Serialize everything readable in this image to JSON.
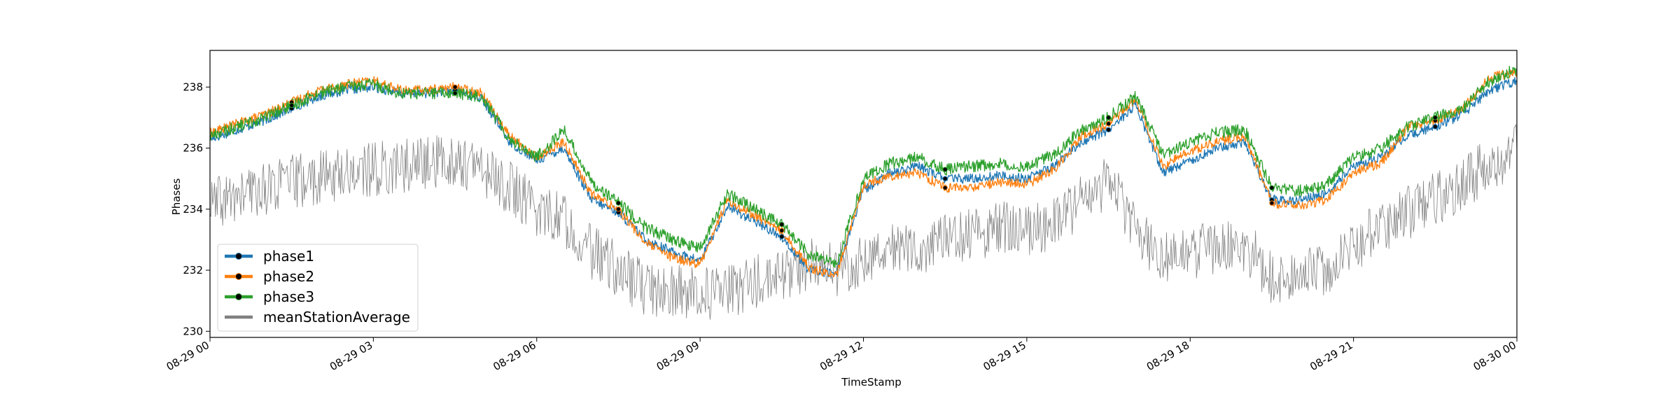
{
  "chart_data": {
    "type": "line",
    "title": "",
    "xlabel": "TimeStamp",
    "ylabel": "Phases",
    "ylim": [
      229.8,
      239.2
    ],
    "yticks": [
      230,
      232,
      234,
      236,
      238
    ],
    "xlim": [
      "2021-08-29T00:00",
      "2021-08-30T00:00"
    ],
    "xtick_labels": [
      "08-29 00",
      "08-29 03",
      "08-29 06",
      "08-29 09",
      "08-29 12",
      "08-29 15",
      "08-29 18",
      "08-29 21",
      "08-30 00"
    ],
    "xtick_hours": [
      0,
      3,
      6,
      9,
      12,
      15,
      18,
      21,
      24
    ],
    "grid": false,
    "legend_position": "lower-left",
    "x": [
      "00:00",
      "00:30",
      "01:00",
      "01:30",
      "02:00",
      "02:30",
      "03:00",
      "03:30",
      "04:00",
      "04:30",
      "05:00",
      "05:30",
      "06:00",
      "06:30",
      "07:00",
      "07:30",
      "08:00",
      "08:30",
      "09:00",
      "09:30",
      "10:00",
      "10:30",
      "11:00",
      "11:30",
      "12:00",
      "12:30",
      "13:00",
      "13:30",
      "14:00",
      "14:30",
      "15:00",
      "15:30",
      "16:00",
      "16:30",
      "17:00",
      "17:30",
      "18:00",
      "18:30",
      "19:00",
      "19:30",
      "20:00",
      "20:30",
      "21:00",
      "21:30",
      "22:00",
      "22:30",
      "23:00",
      "23:30",
      "24:00"
    ],
    "series": [
      {
        "name": "phase1",
        "color": "#1f77b4",
        "marker": "circle",
        "values": [
          236.3,
          236.6,
          236.9,
          237.3,
          237.7,
          237.9,
          238.0,
          237.8,
          237.8,
          237.9,
          237.6,
          236.2,
          235.6,
          236.0,
          234.3,
          233.9,
          233.0,
          232.6,
          232.3,
          234.1,
          233.6,
          233.1,
          232.0,
          231.9,
          234.6,
          235.2,
          235.4,
          235.0,
          235.0,
          235.1,
          235.0,
          235.4,
          236.2,
          236.6,
          237.4,
          235.2,
          235.6,
          236.0,
          236.2,
          234.3,
          234.3,
          234.5,
          235.4,
          235.7,
          236.4,
          236.7,
          237.1,
          237.9,
          238.2
        ]
      },
      {
        "name": "phase2",
        "color": "#ff7f0e",
        "marker": "circle",
        "values": [
          236.5,
          236.8,
          237.1,
          237.5,
          237.9,
          238.1,
          238.2,
          237.9,
          237.9,
          238.0,
          237.8,
          236.4,
          235.7,
          236.2,
          234.5,
          234.0,
          232.9,
          232.4,
          232.2,
          234.3,
          233.8,
          233.3,
          232.1,
          231.8,
          234.8,
          235.1,
          235.2,
          234.7,
          234.7,
          234.9,
          234.8,
          235.3,
          236.4,
          236.8,
          237.6,
          235.4,
          235.9,
          236.2,
          236.4,
          234.2,
          234.1,
          234.3,
          235.2,
          235.5,
          236.7,
          236.9,
          237.3,
          238.3,
          238.5
        ]
      },
      {
        "name": "phase3",
        "color": "#2ca02c",
        "marker": "circle",
        "values": [
          236.4,
          236.7,
          237.0,
          237.4,
          237.8,
          238.0,
          238.1,
          237.8,
          237.8,
          237.8,
          237.7,
          236.3,
          235.7,
          236.6,
          234.9,
          234.2,
          233.4,
          233.0,
          232.7,
          234.5,
          234.0,
          233.5,
          232.5,
          232.2,
          235.0,
          235.5,
          235.7,
          235.3,
          235.4,
          235.5,
          235.4,
          235.8,
          236.6,
          237.0,
          237.7,
          235.8,
          236.2,
          236.5,
          236.6,
          234.7,
          234.6,
          234.8,
          235.7,
          236.0,
          236.7,
          237.0,
          237.3,
          238.2,
          238.6
        ]
      },
      {
        "name": "meanStationAverage",
        "color": "#808080",
        "marker": "none",
        "values": [
          234.1,
          234.4,
          234.7,
          234.9,
          235.0,
          235.2,
          235.3,
          235.4,
          235.5,
          235.6,
          235.3,
          234.7,
          234.0,
          233.7,
          232.6,
          232.0,
          231.4,
          231.3,
          231.2,
          231.3,
          231.6,
          231.8,
          232.2,
          232.0,
          232.4,
          232.9,
          232.6,
          233.0,
          233.2,
          233.4,
          233.3,
          233.5,
          234.2,
          234.9,
          233.5,
          232.3,
          232.6,
          232.7,
          232.8,
          231.8,
          231.7,
          232.1,
          232.8,
          233.4,
          233.9,
          234.3,
          234.8,
          235.5,
          235.9
        ]
      }
    ]
  }
}
